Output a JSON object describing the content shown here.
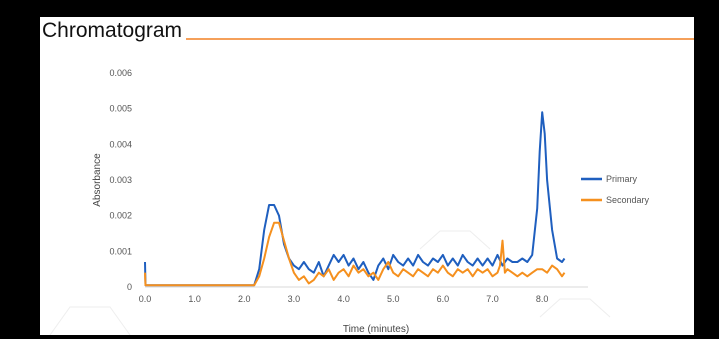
{
  "chart_data": {
    "type": "line",
    "title": "Chromatogram",
    "xlabel": "Time (minutes)",
    "ylabel": "Absorbance",
    "xlim": [
      0,
      8.5
    ],
    "ylim": [
      0,
      0.006
    ],
    "x_ticks": [
      "0.0",
      "1.0",
      "2.0",
      "3.0",
      "4.0",
      "5.0",
      "6.0",
      "7.0",
      "8.0"
    ],
    "y_ticks": [
      "0",
      "0.001",
      "0.002",
      "0.003",
      "0.004",
      "0.005",
      "0.006"
    ],
    "grid": false,
    "legend_position": "right",
    "series": [
      {
        "name": "Primary",
        "color": "#1f5fbf",
        "points": [
          [
            0.0,
            0.0007
          ],
          [
            0.01,
            5e-05
          ],
          [
            0.5,
            5e-05
          ],
          [
            1.0,
            5e-05
          ],
          [
            1.5,
            5e-05
          ],
          [
            2.0,
            5e-05
          ],
          [
            2.2,
            5e-05
          ],
          [
            2.3,
            0.0005
          ],
          [
            2.4,
            0.0016
          ],
          [
            2.5,
            0.0023
          ],
          [
            2.6,
            0.0023
          ],
          [
            2.7,
            0.002
          ],
          [
            2.8,
            0.0012
          ],
          [
            2.9,
            0.0008
          ],
          [
            3.0,
            0.0006
          ],
          [
            3.1,
            0.0005
          ],
          [
            3.2,
            0.0007
          ],
          [
            3.3,
            0.0005
          ],
          [
            3.4,
            0.0004
          ],
          [
            3.5,
            0.0007
          ],
          [
            3.6,
            0.0003
          ],
          [
            3.7,
            0.0006
          ],
          [
            3.8,
            0.0009
          ],
          [
            3.9,
            0.0007
          ],
          [
            4.0,
            0.0009
          ],
          [
            4.1,
            0.0006
          ],
          [
            4.2,
            0.0008
          ],
          [
            4.3,
            0.0005
          ],
          [
            4.4,
            0.0007
          ],
          [
            4.5,
            0.0004
          ],
          [
            4.6,
            0.0002
          ],
          [
            4.7,
            0.0006
          ],
          [
            4.8,
            0.0008
          ],
          [
            4.9,
            0.0005
          ],
          [
            5.0,
            0.0009
          ],
          [
            5.1,
            0.0007
          ],
          [
            5.2,
            0.0006
          ],
          [
            5.3,
            0.0008
          ],
          [
            5.4,
            0.0006
          ],
          [
            5.5,
            0.0009
          ],
          [
            5.6,
            0.0007
          ],
          [
            5.7,
            0.0006
          ],
          [
            5.8,
            0.0008
          ],
          [
            5.9,
            0.0007
          ],
          [
            6.0,
            0.0009
          ],
          [
            6.1,
            0.0006
          ],
          [
            6.2,
            0.0008
          ],
          [
            6.3,
            0.0006
          ],
          [
            6.4,
            0.0009
          ],
          [
            6.5,
            0.0007
          ],
          [
            6.6,
            0.0006
          ],
          [
            6.7,
            0.0008
          ],
          [
            6.8,
            0.0006
          ],
          [
            6.9,
            0.0008
          ],
          [
            7.0,
            0.0006
          ],
          [
            7.1,
            0.0009
          ],
          [
            7.2,
            0.0006
          ],
          [
            7.3,
            0.0008
          ],
          [
            7.4,
            0.0007
          ],
          [
            7.5,
            0.0007
          ],
          [
            7.6,
            0.0008
          ],
          [
            7.7,
            0.0007
          ],
          [
            7.8,
            0.0009
          ],
          [
            7.9,
            0.0022
          ],
          [
            7.95,
            0.0038
          ],
          [
            8.0,
            0.0049
          ],
          [
            8.05,
            0.0043
          ],
          [
            8.1,
            0.003
          ],
          [
            8.2,
            0.0016
          ],
          [
            8.3,
            0.0008
          ],
          [
            8.4,
            0.0007
          ],
          [
            8.45,
            0.0008
          ]
        ]
      },
      {
        "name": "Secondary",
        "color": "#f5901e",
        "points": [
          [
            0.0,
            0.0004
          ],
          [
            0.01,
            5e-05
          ],
          [
            0.5,
            5e-05
          ],
          [
            1.0,
            5e-05
          ],
          [
            1.5,
            5e-05
          ],
          [
            2.0,
            5e-05
          ],
          [
            2.2,
            5e-05
          ],
          [
            2.3,
            0.0003
          ],
          [
            2.4,
            0.0008
          ],
          [
            2.5,
            0.0014
          ],
          [
            2.6,
            0.0018
          ],
          [
            2.7,
            0.0018
          ],
          [
            2.8,
            0.0013
          ],
          [
            2.9,
            0.0008
          ],
          [
            3.0,
            0.0004
          ],
          [
            3.1,
            0.0002
          ],
          [
            3.2,
            0.0003
          ],
          [
            3.3,
            0.0001
          ],
          [
            3.4,
            0.0002
          ],
          [
            3.5,
            0.0004
          ],
          [
            3.6,
            0.0003
          ],
          [
            3.7,
            0.0005
          ],
          [
            3.8,
            0.0002
          ],
          [
            3.9,
            0.0004
          ],
          [
            4.0,
            0.0005
          ],
          [
            4.1,
            0.0003
          ],
          [
            4.2,
            0.0006
          ],
          [
            4.3,
            0.0004
          ],
          [
            4.4,
            0.0005
          ],
          [
            4.5,
            0.0003
          ],
          [
            4.6,
            0.0004
          ],
          [
            4.7,
            0.0002
          ],
          [
            4.8,
            0.0005
          ],
          [
            4.9,
            0.0007
          ],
          [
            5.0,
            0.0004
          ],
          [
            5.1,
            0.0003
          ],
          [
            5.2,
            0.0005
          ],
          [
            5.3,
            0.0004
          ],
          [
            5.4,
            0.0003
          ],
          [
            5.5,
            0.0005
          ],
          [
            5.6,
            0.0004
          ],
          [
            5.7,
            0.0003
          ],
          [
            5.8,
            0.0005
          ],
          [
            5.9,
            0.0004
          ],
          [
            6.0,
            0.0006
          ],
          [
            6.1,
            0.0004
          ],
          [
            6.2,
            0.0003
          ],
          [
            6.3,
            0.0005
          ],
          [
            6.4,
            0.0004
          ],
          [
            6.5,
            0.0005
          ],
          [
            6.6,
            0.0003
          ],
          [
            6.7,
            0.0005
          ],
          [
            6.8,
            0.0004
          ],
          [
            6.9,
            0.0005
          ],
          [
            7.0,
            0.0003
          ],
          [
            7.1,
            0.0004
          ],
          [
            7.15,
            0.0006
          ],
          [
            7.2,
            0.0013
          ],
          [
            7.25,
            0.0004
          ],
          [
            7.3,
            0.0005
          ],
          [
            7.4,
            0.0004
          ],
          [
            7.5,
            0.0003
          ],
          [
            7.6,
            0.0004
          ],
          [
            7.7,
            0.0003
          ],
          [
            7.8,
            0.0004
          ],
          [
            7.9,
            0.0005
          ],
          [
            8.0,
            0.0005
          ],
          [
            8.1,
            0.0004
          ],
          [
            8.2,
            0.0006
          ],
          [
            8.3,
            0.0005
          ],
          [
            8.4,
            0.0003
          ],
          [
            8.45,
            0.0004
          ]
        ]
      }
    ]
  },
  "colors": {
    "title_rule": "#f5a05a",
    "axis_line": "#d9d9d9",
    "decor_lines": "#ececec"
  }
}
